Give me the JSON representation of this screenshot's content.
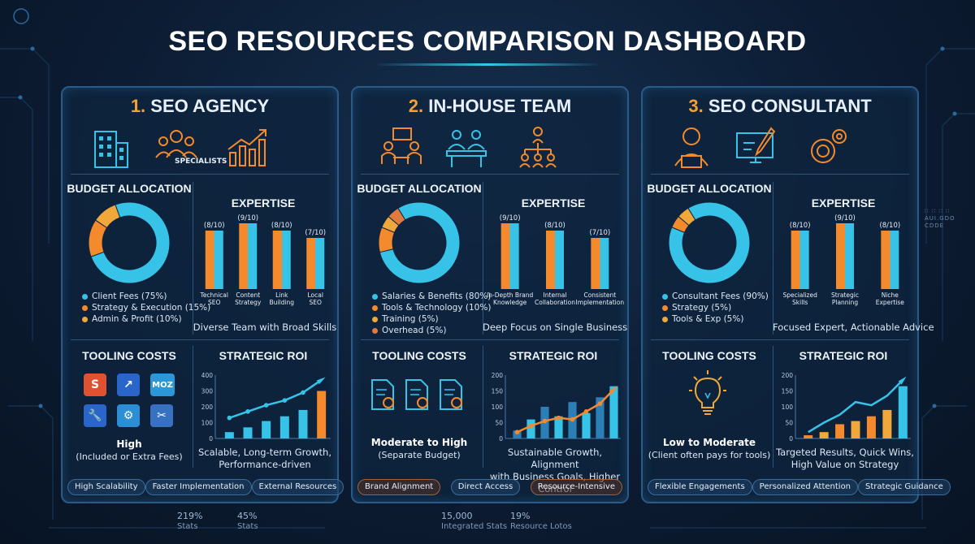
{
  "title": "SEO RESOURCES COMPARISON DASHBOARD",
  "colors": {
    "cyan": "#37c3e8",
    "orange": "#f58a2c",
    "amber": "#f0a83a",
    "panel_border": "#2a5a86"
  },
  "side_label": [
    "∷ ∷ ∷ ∷",
    "AUI.GDO",
    "CDDE"
  ],
  "bottom_stats": [
    {
      "value": "219%",
      "label": "Stats"
    },
    {
      "value": "45%",
      "label": "Stats"
    },
    {
      "value": "15,000",
      "label": "Integrated Stats"
    },
    {
      "value": "19%",
      "label": "Resource Lotos"
    }
  ],
  "panels": [
    {
      "num": "1.",
      "name": "SEO AGENCY",
      "icons": [
        "building-icon",
        "specialists-icon",
        "growth-chart-icon"
      ],
      "icon_label": "SPECIALISTS",
      "budget_title": "BUDGET ALLOCATION",
      "budget_legend": [
        "Client Fees (75%)",
        "Strategy & Execution (15%)",
        "Admin & Profit (10%)"
      ],
      "expertise_title": "EXPERTISE",
      "expertise_caption": "Diverse Team with Broad Skills",
      "tooling_title": "TOOLING COSTS",
      "tooling_main": "High",
      "tooling_sub": "(Included or Extra Fees)",
      "tools": [
        "semrush-icon",
        "seo-tool-icon",
        "MOZ",
        "wrench-icon",
        "sitemap-icon",
        "tools-icon"
      ],
      "roi_title": "STRATEGIC ROI",
      "roi_caption": [
        "Scalable, Long-term Growth,",
        "Performance-driven"
      ],
      "pills": [
        "High Scalability",
        "Faster Implementation",
        "External Resources"
      ]
    },
    {
      "num": "2.",
      "name": "IN-HOUSE TEAM",
      "icons": [
        "meeting-icon",
        "collaboration-icon",
        "org-chart-icon"
      ],
      "icon_label": "",
      "budget_title": "BUDGET ALLOCATION",
      "budget_legend": [
        "Salaries & Benefits (80%)",
        "Tools & Technology (10%)",
        "Training (5%)",
        "Overhead (5%)"
      ],
      "expertise_title": "EXPERTISE",
      "expertise_caption": "Deep Focus on Single Business",
      "tooling_title": "TOOLING COSTS",
      "tooling_main": "Moderate to High",
      "tooling_sub": "(Separate Budget)",
      "tools": [
        "document-tool-icon",
        "document-icon",
        "document-settings-icon"
      ],
      "roi_title": "STRATEGIC ROI",
      "roi_caption": [
        "Sustainable Growth, Alignment",
        "with Business Goals, Higher Control"
      ],
      "pills": [
        "Brand Alignment",
        "Direct Access",
        "Resource-Intensive"
      ]
    },
    {
      "num": "3.",
      "name": "SEO CONSULTANT",
      "icons": [
        "consultant-icon",
        "design-monitor-icon",
        "gear-badge-icon"
      ],
      "icon_label": "",
      "budget_title": "BUDGET ALLOCATION",
      "budget_legend": [
        "Consultant Fees (90%)",
        "Strategy (5%)",
        "Tools & Exp (5%)"
      ],
      "expertise_title": "EXPERTISE",
      "expertise_caption": "Focused Expert, Actionable Advice",
      "tooling_title": "TOOLING COSTS",
      "tooling_main": "Low to Moderate",
      "tooling_sub": "(Client often pays for tools)",
      "tools": [
        "lightbulb-icon"
      ],
      "roi_title": "STRATEGIC ROI",
      "roi_caption": [
        "Targeted Results, Quick Wins,",
        "High Value on Strategy"
      ],
      "pills": [
        "Flexible Engagements",
        "Personalized Attention",
        "Strategic Guidance"
      ]
    }
  ],
  "chart_data": [
    {
      "type": "pie",
      "panel": "SEO AGENCY",
      "title": "BUDGET ALLOCATION",
      "labels": [
        "Client Fees",
        "Strategy & Execution",
        "Admin & Profit"
      ],
      "values": [
        75,
        15,
        10
      ],
      "colors": [
        "#37c3e8",
        "#f58a2c",
        "#f0a83a"
      ]
    },
    {
      "type": "bar",
      "panel": "SEO AGENCY",
      "title": "EXPERTISE",
      "categories": [
        "Technical SEO",
        "Content Strategy",
        "Link Building",
        "Local SEO"
      ],
      "values": [
        8,
        9,
        8,
        7
      ],
      "value_labels": [
        "(8/10)",
        "(9/10)",
        "(8/10)",
        "(7/10)"
      ],
      "ylim": [
        0,
        10
      ]
    },
    {
      "type": "bar",
      "panel": "SEO AGENCY",
      "title": "STRATEGIC ROI",
      "categories": [
        "1",
        "2",
        "3",
        "4",
        "5",
        "6"
      ],
      "values": [
        40,
        70,
        110,
        140,
        180,
        300
      ],
      "line": [
        130,
        170,
        210,
        240,
        290,
        370
      ],
      "yticks": [
        0,
        100,
        200,
        300,
        400
      ],
      "ylim": [
        0,
        400
      ]
    },
    {
      "type": "pie",
      "panel": "IN-HOUSE TEAM",
      "title": "BUDGET ALLOCATION",
      "labels": [
        "Salaries & Benefits",
        "Tools & Technology",
        "Training",
        "Overhead"
      ],
      "values": [
        80,
        10,
        5,
        5
      ],
      "colors": [
        "#37c3e8",
        "#f58a2c",
        "#f0a83a",
        "#e07a3e"
      ]
    },
    {
      "type": "bar",
      "panel": "IN-HOUSE TEAM",
      "title": "EXPERTISE",
      "categories": [
        "In-Depth Brand Knowledge",
        "Internal Collaboration",
        "Consistent Implementation"
      ],
      "values": [
        9,
        8,
        7
      ],
      "value_labels": [
        "(9/10)",
        "(8/10)",
        "(7/10)"
      ],
      "ylim": [
        0,
        10
      ]
    },
    {
      "type": "bar",
      "panel": "IN-HOUSE TEAM",
      "title": "STRATEGIC ROI",
      "categories": [
        "1",
        "2",
        "3",
        "4",
        "5",
        "6",
        "7",
        "8"
      ],
      "values": [
        25,
        60,
        100,
        70,
        115,
        80,
        130,
        165
      ],
      "line": [
        20,
        40,
        55,
        65,
        60,
        85,
        110,
        155
      ],
      "yticks": [
        0,
        50,
        100,
        150,
        200
      ],
      "ylim": [
        0,
        200
      ]
    },
    {
      "type": "pie",
      "panel": "SEO CONSULTANT",
      "title": "BUDGET ALLOCATION",
      "labels": [
        "Consultant Fees",
        "Strategy",
        "Tools & Exp"
      ],
      "values": [
        90,
        5,
        5
      ],
      "colors": [
        "#37c3e8",
        "#f58a2c",
        "#f0a83a"
      ]
    },
    {
      "type": "bar",
      "panel": "SEO CONSULTANT",
      "title": "EXPERTISE",
      "categories": [
        "Specialized Skills",
        "Strategic Planning",
        "Niche Expertise"
      ],
      "values": [
        8,
        9,
        8
      ],
      "value_labels": [
        "(8/10)",
        "(9/10)",
        "(8/10)"
      ],
      "ylim": [
        0,
        10
      ]
    },
    {
      "type": "bar",
      "panel": "SEO CONSULTANT",
      "title": "STRATEGIC ROI",
      "categories": [
        "1",
        "2",
        "3",
        "4",
        "5",
        "6",
        "7"
      ],
      "values": [
        10,
        20,
        45,
        55,
        70,
        90,
        165
      ],
      "line": [
        20,
        50,
        75,
        115,
        105,
        135,
        185
      ],
      "yticks": [
        0,
        50,
        100,
        150,
        200
      ],
      "ylim": [
        0,
        200
      ]
    }
  ]
}
